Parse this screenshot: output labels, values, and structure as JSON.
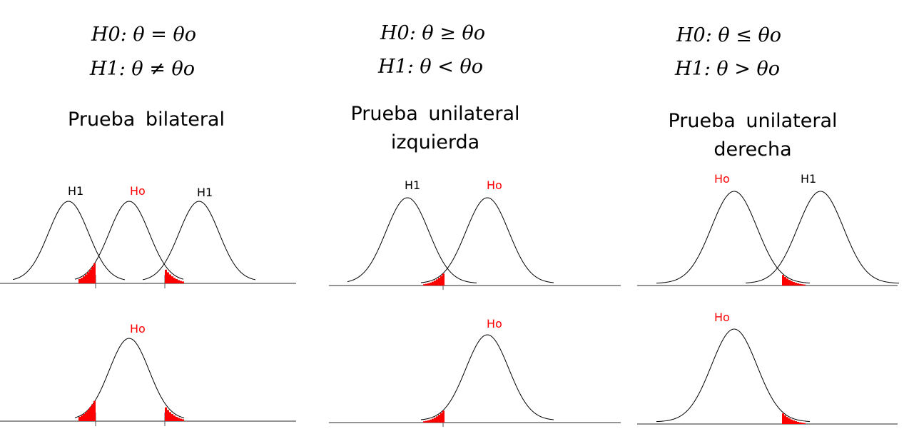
{
  "panels": [
    {
      "h0": "H0: θ = θo",
      "h1": "H1: θ ≠ θo",
      "title_lines": [
        "Prueba  bilateral"
      ],
      "top_labels": [
        "H1",
        "Ho",
        "H1"
      ],
      "bottom_label": "Ho"
    },
    {
      "h0": "H0: θ ≥ θo",
      "h1": "H1: θ < θo",
      "title_lines": [
        "Prueba  unilateral",
        "izquierda"
      ],
      "top_labels": [
        "H1",
        "Ho"
      ],
      "bottom_label": "Ho"
    },
    {
      "h0": "H0: θ ≤ θo",
      "h1": "H1: θ > θo",
      "title_lines": [
        "Prueba  unilateral",
        "derecha"
      ],
      "top_labels": [
        "Ho",
        "H1"
      ],
      "bottom_label": "Ho"
    }
  ],
  "colors": {
    "rejection_region": "#ff0000",
    "ho_label": "#ff0000",
    "curve": "#000000"
  }
}
